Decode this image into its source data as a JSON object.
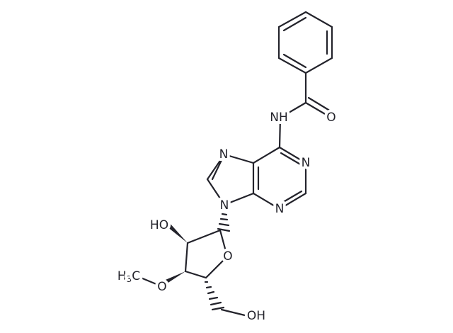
{
  "atoms": {
    "amide_nh": "NH",
    "carbonyl_o": "O",
    "n1": "N",
    "n3": "N",
    "n7": "N",
    "n9": "N",
    "hydroxy_2": "HO",
    "ring_o": "O",
    "methoxy_o": "O",
    "methyl": {
      "h": "H",
      "sub": "3",
      "c": "C"
    },
    "hydroxy_5": "OH"
  }
}
